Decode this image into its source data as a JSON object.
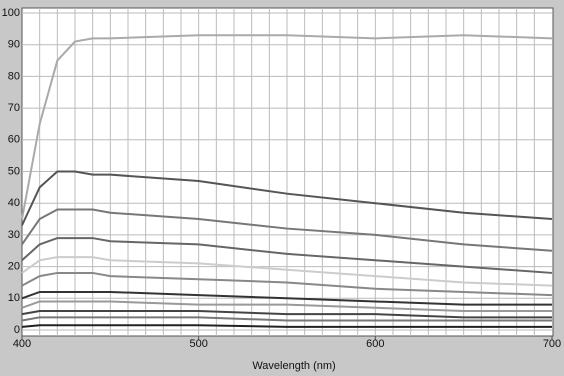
{
  "chart_data": {
    "type": "line",
    "x_label": "Wavelength (nm)",
    "x": [
      400,
      410,
      420,
      430,
      440,
      450,
      500,
      550,
      600,
      650,
      700
    ],
    "xlim": [
      400,
      700
    ],
    "xticks": [
      400,
      500,
      600,
      700
    ],
    "x_grid_step": 10,
    "ylim": [
      0,
      100
    ],
    "yticks": [
      0,
      10,
      20,
      30,
      40,
      50,
      60,
      70,
      80,
      90,
      100
    ],
    "grid": true,
    "series": [
      {
        "color": "#aaaaaa",
        "values": [
          35,
          65,
          85,
          91,
          92,
          92,
          93,
          93,
          92,
          93,
          92
        ]
      },
      {
        "color": "#555555",
        "values": [
          33,
          45,
          50,
          50,
          49,
          49,
          47,
          43,
          40,
          37,
          35
        ]
      },
      {
        "color": "#777777",
        "values": [
          27,
          35,
          38,
          38,
          38,
          37,
          35,
          32,
          30,
          27,
          25
        ]
      },
      {
        "color": "#666666",
        "values": [
          22,
          27,
          29,
          29,
          29,
          28,
          27,
          24,
          22,
          20,
          18
        ]
      },
      {
        "color": "#cccccc",
        "values": [
          18,
          22,
          23,
          23,
          23,
          22,
          21,
          19,
          17,
          15,
          14
        ]
      },
      {
        "color": "#888888",
        "values": [
          14,
          17,
          18,
          18,
          18,
          17,
          16,
          15,
          13,
          12,
          11
        ]
      },
      {
        "color": "#333333",
        "values": [
          10,
          12,
          12,
          12,
          12,
          12,
          11,
          10,
          9,
          8,
          8
        ]
      },
      {
        "color": "#999999",
        "values": [
          7,
          9,
          9,
          9,
          9,
          9,
          8,
          8,
          7,
          6,
          6
        ]
      },
      {
        "color": "#444444",
        "values": [
          5,
          6,
          6,
          6,
          6,
          6,
          6,
          5,
          5,
          4,
          4
        ]
      },
      {
        "color": "#777777",
        "values": [
          3,
          4,
          4,
          4,
          4,
          4,
          4,
          3,
          3,
          3,
          3
        ]
      },
      {
        "color": "#222222",
        "values": [
          1,
          1.5,
          1.5,
          1.5,
          1.5,
          1.5,
          1.5,
          1,
          1,
          1,
          1
        ]
      }
    ]
  }
}
